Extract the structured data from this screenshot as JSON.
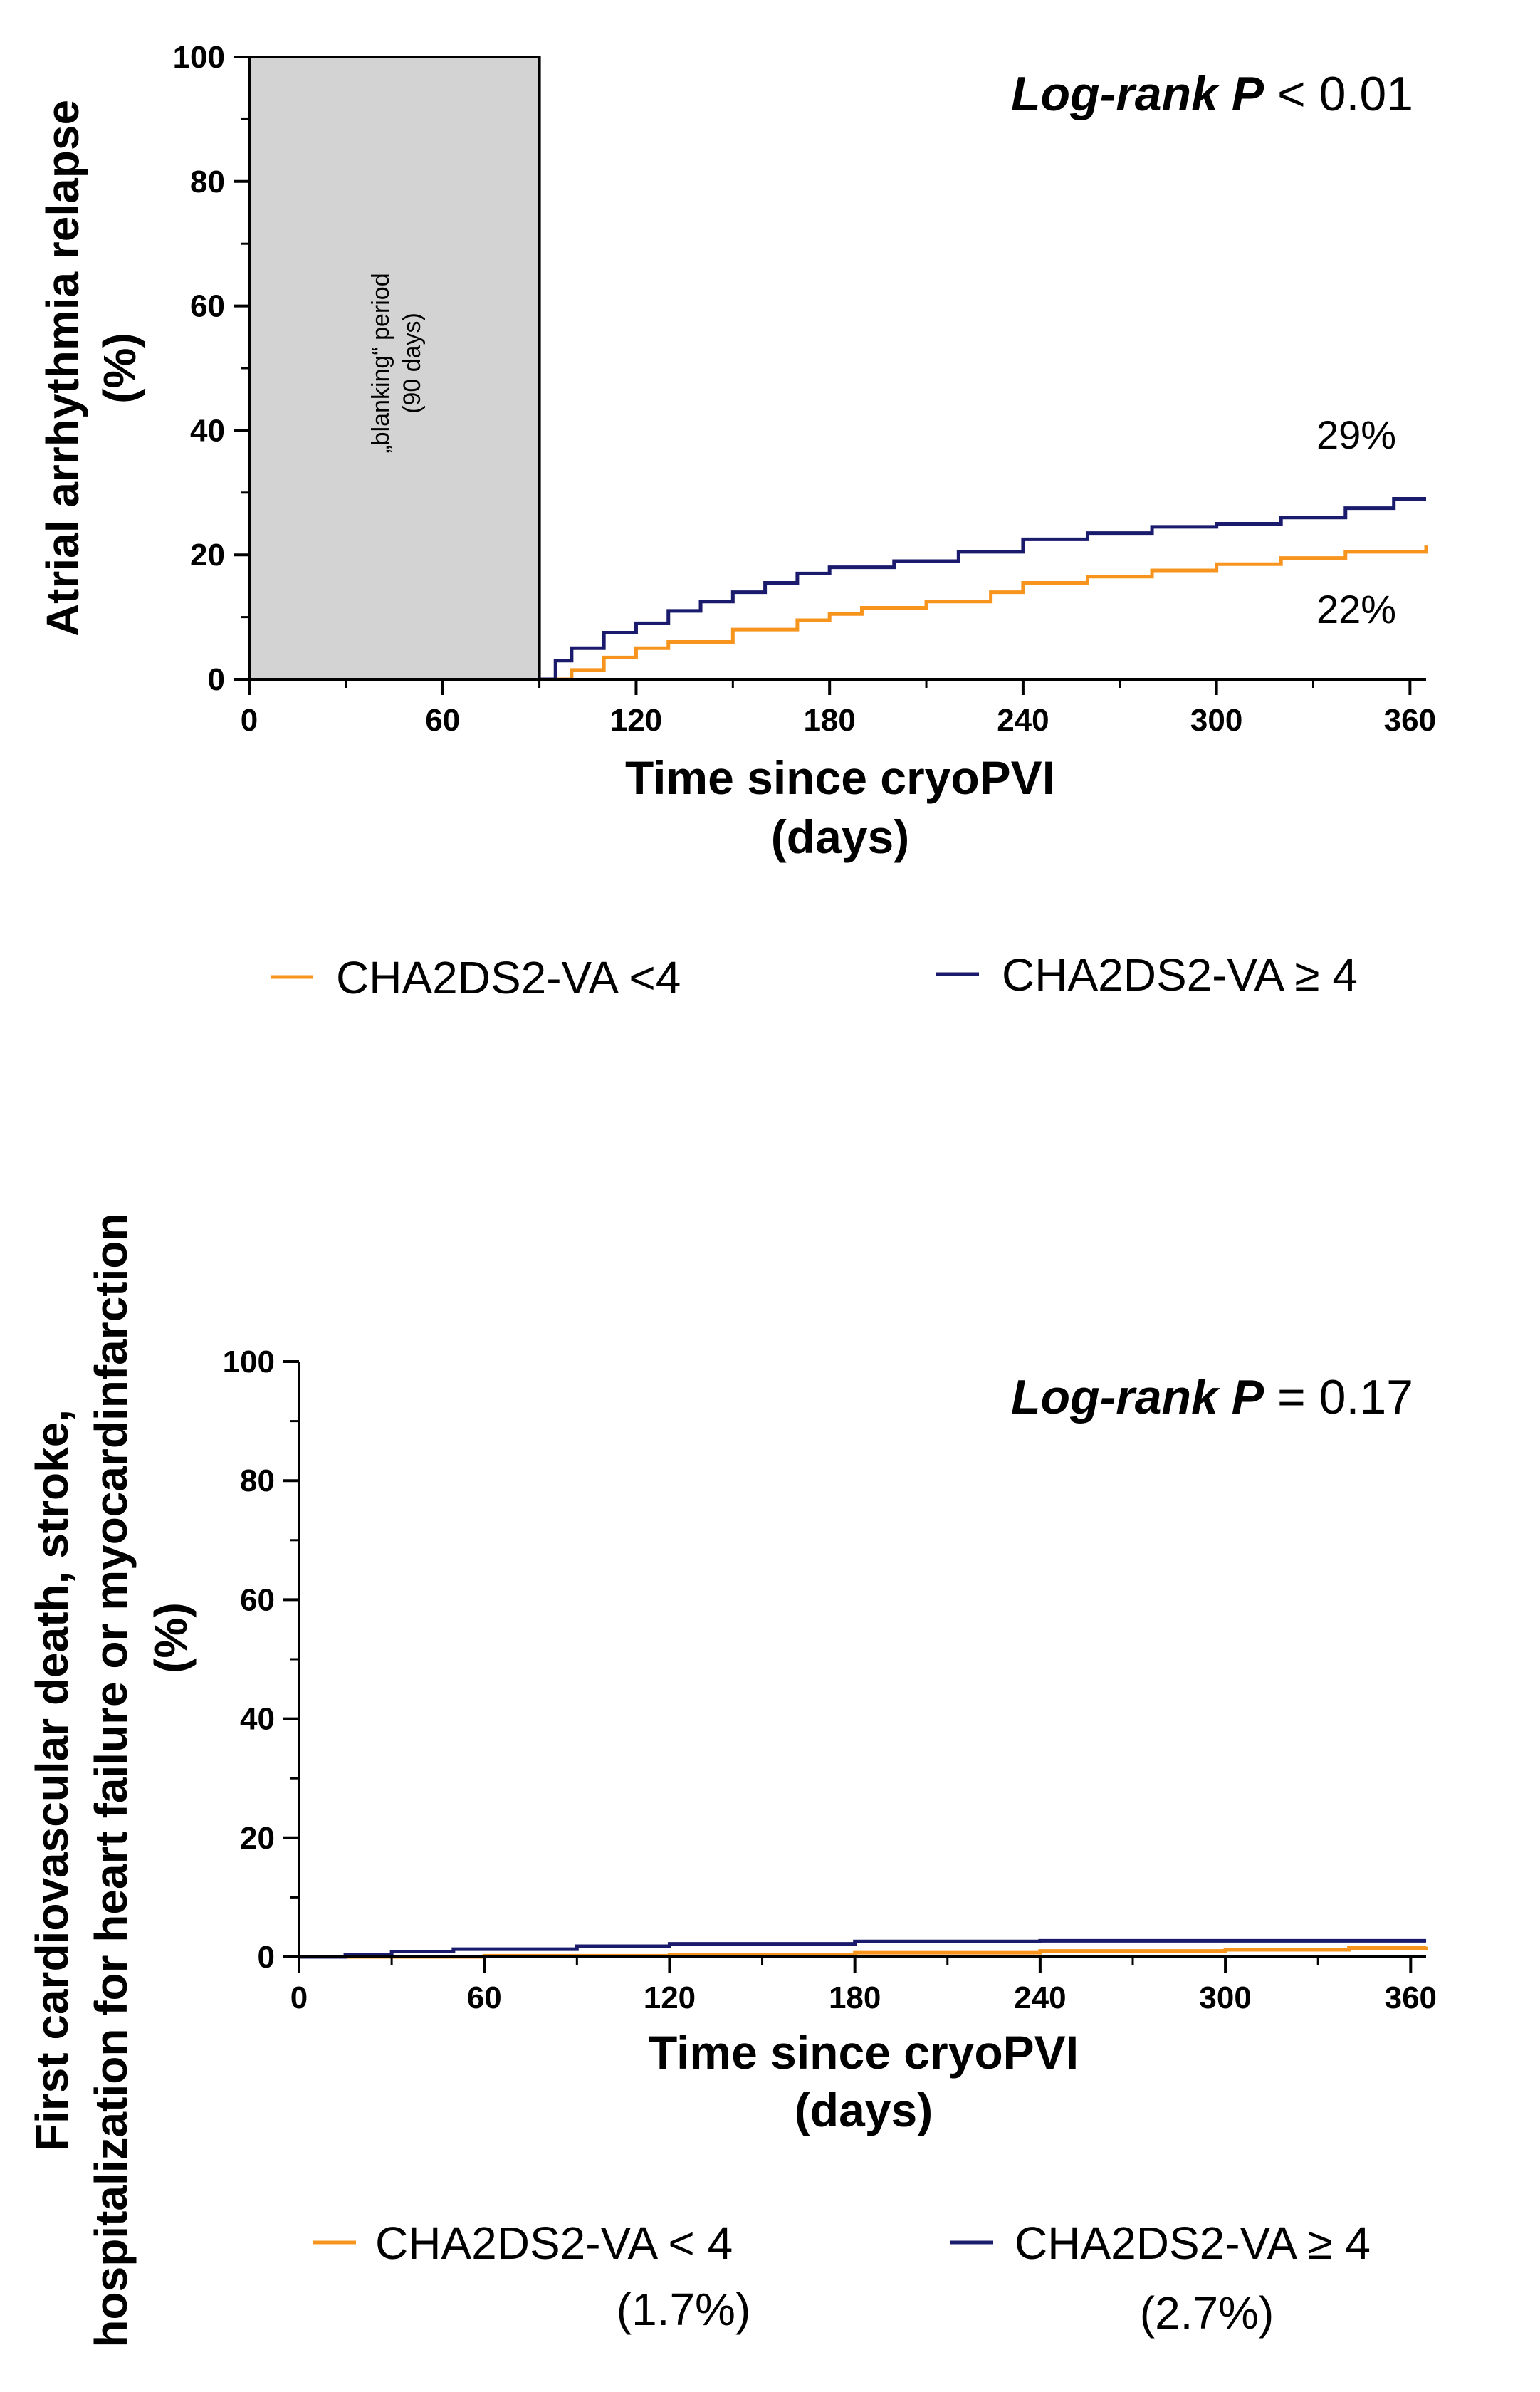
{
  "chart_data": [
    {
      "type": "line",
      "subtype": "kaplan-meier cumulative incidence",
      "ylabel_line1": "Atrial arrhythmia relapse",
      "ylabel_line2": "(%)",
      "xlabel_line1": "Time since cryoPVI",
      "xlabel_line2": "(days)",
      "xlim": [
        0,
        365
      ],
      "ylim": [
        0,
        100
      ],
      "x_ticks": [
        "0",
        "60",
        "120",
        "180",
        "240",
        "300",
        "360"
      ],
      "y_ticks": [
        "0",
        "20",
        "40",
        "60",
        "80",
        "100"
      ],
      "logrank_label": "Log-rank P",
      "logrank_value": " < 0.01",
      "blanking_line1": "„blanking“ period",
      "blanking_line2": "(90 days)",
      "blanking_days": 90,
      "end_label_high": "29%",
      "end_label_low": "22%",
      "series": [
        {
          "name": "CHA2DS2-VA <4",
          "color": "#F7941D",
          "x": [
            90,
            100,
            110,
            120,
            130,
            150,
            170,
            180,
            190,
            210,
            230,
            240,
            260,
            280,
            300,
            320,
            340,
            365
          ],
          "y": [
            0,
            1.5,
            3.5,
            5,
            6,
            8,
            9.5,
            10.5,
            11.5,
            12.5,
            14,
            15.5,
            16.5,
            17.5,
            18.5,
            19.5,
            20.5,
            21.5
          ]
        },
        {
          "name": "CHA2DS2-VA ≥ 4",
          "color": "#1B1B6E",
          "x": [
            90,
            95,
            100,
            110,
            120,
            130,
            140,
            150,
            160,
            170,
            180,
            200,
            220,
            240,
            260,
            280,
            300,
            320,
            340,
            355,
            365
          ],
          "y": [
            0,
            3,
            5,
            7.5,
            9,
            11,
            12.5,
            14,
            15.5,
            17,
            18,
            19,
            20.5,
            22.5,
            23.5,
            24.5,
            25,
            26,
            27.5,
            29,
            29
          ]
        }
      ],
      "legend_position": "bottom"
    },
    {
      "type": "line",
      "subtype": "kaplan-meier cumulative incidence",
      "ylabel_line1": "First cardiovascular death, stroke,",
      "ylabel_line2": "hospitalization for heart failure or myocardinfarction",
      "ylabel_line3": "(%)",
      "xlabel_line1": "Time since cryoPVI",
      "xlabel_line2": "(days)",
      "xlim": [
        0,
        365
      ],
      "ylim": [
        0,
        100
      ],
      "x_ticks": [
        "0",
        "60",
        "120",
        "180",
        "240",
        "300",
        "360"
      ],
      "y_ticks": [
        "0",
        "20",
        "40",
        "60",
        "80",
        "100"
      ],
      "logrank_label": "Log-rank P",
      "logrank_value": " = 0.17",
      "series": [
        {
          "name": "CHA2DS2-VA < 4",
          "legend_pct": "(1.7%)",
          "color": "#F7941D",
          "x": [
            0,
            60,
            120,
            180,
            240,
            300,
            340,
            365
          ],
          "y": [
            0,
            0.2,
            0.4,
            0.7,
            1.0,
            1.2,
            1.5,
            1.7
          ]
        },
        {
          "name": "CHA2DS2-VA ≥ 4",
          "legend_pct": "(2.7%)",
          "color": "#1B1B6E",
          "x": [
            0,
            15,
            30,
            50,
            90,
            120,
            180,
            240,
            300,
            365
          ],
          "y": [
            0,
            0.4,
            0.9,
            1.3,
            1.8,
            2.2,
            2.6,
            2.7,
            2.7,
            2.7
          ]
        }
      ],
      "legend_position": "bottom"
    }
  ]
}
